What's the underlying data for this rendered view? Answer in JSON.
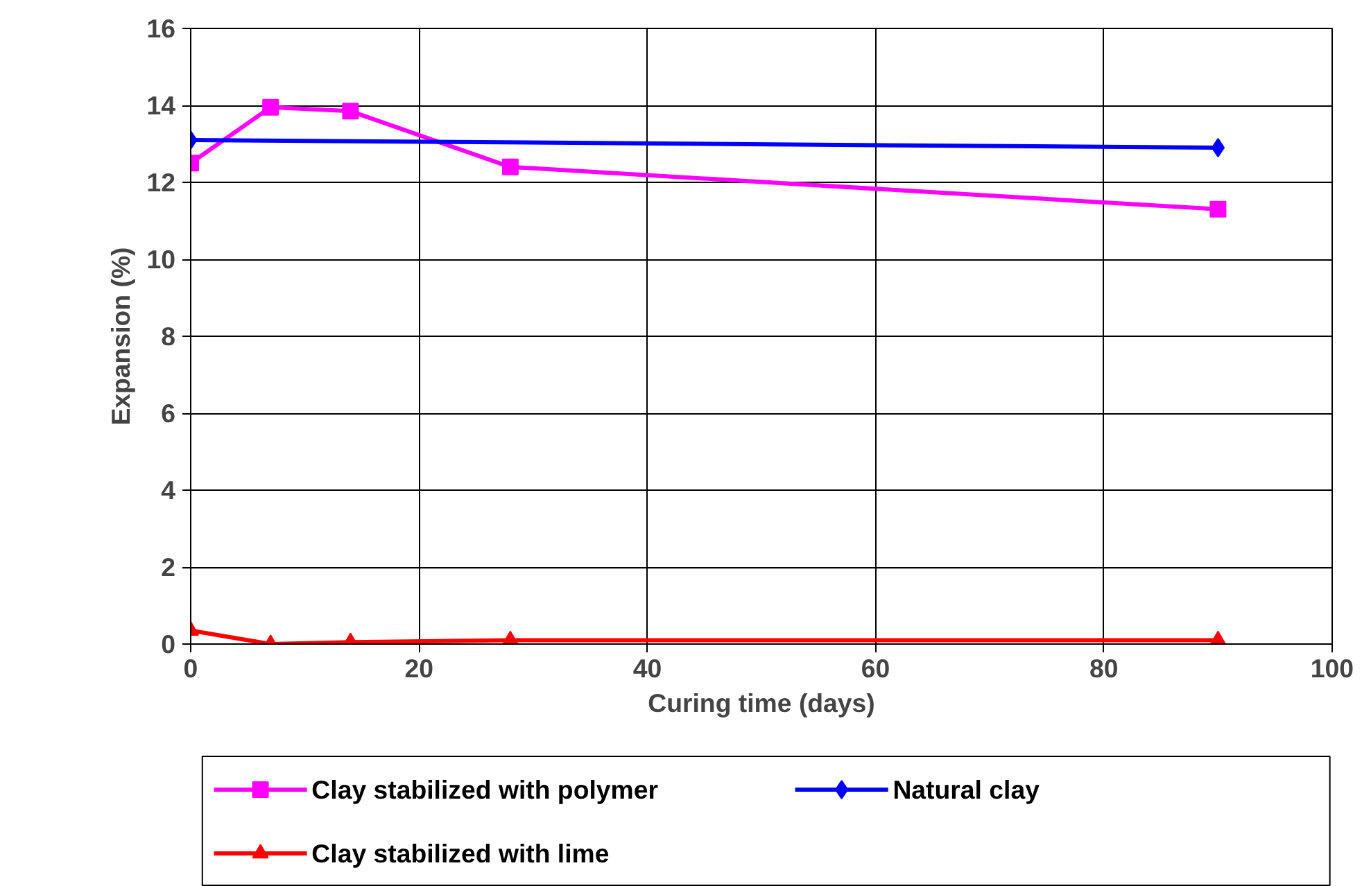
{
  "chart_data": {
    "type": "line",
    "xlabel": "Curing time (days)",
    "ylabel": "Expansion (%)",
    "xlim": [
      0,
      100
    ],
    "xticks": [
      0,
      20,
      40,
      60,
      80,
      100
    ],
    "ylim": [
      0,
      16
    ],
    "yticks": [
      0,
      2,
      4,
      6,
      8,
      10,
      12,
      14,
      16
    ],
    "grid": true,
    "legend": "bottom",
    "series": [
      {
        "name": "Clay stabilized with polymer",
        "color": "#ff00ff",
        "marker": "square",
        "x": [
          0,
          7,
          14,
          28,
          90
        ],
        "values": [
          12.5,
          13.95,
          13.85,
          12.4,
          11.3
        ]
      },
      {
        "name": "Natural clay",
        "color": "#0000ff",
        "marker": "diamond",
        "x": [
          0,
          90
        ],
        "values": [
          13.1,
          12.9
        ]
      },
      {
        "name": "Clay stabilized with lime",
        "color": "#ff0000",
        "marker": "triangle",
        "x": [
          0,
          7,
          14,
          28,
          90
        ],
        "values": [
          0.35,
          0.0,
          0.05,
          0.1,
          0.1
        ]
      }
    ]
  }
}
